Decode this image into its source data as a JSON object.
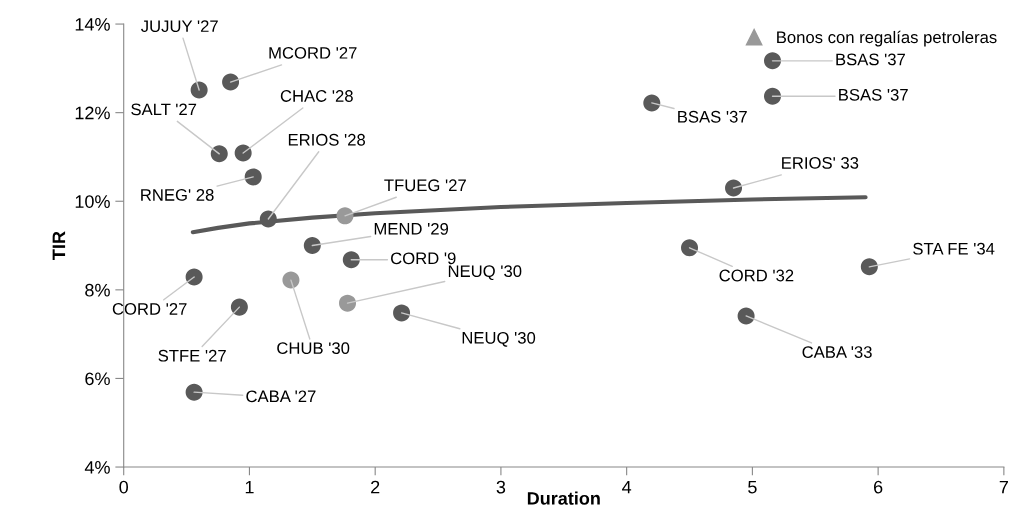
{
  "chart_data": {
    "type": "scatter",
    "xlabel": "Duration",
    "ylabel": "TIR",
    "xlim": [
      0,
      7
    ],
    "xticks": [
      0,
      1,
      2,
      3,
      4,
      5,
      6,
      7
    ],
    "ylim": [
      4,
      14
    ],
    "yticks": [
      {
        "value": 4,
        "label": "4%"
      },
      {
        "value": 6,
        "label": "6%"
      },
      {
        "value": 8,
        "label": "8%"
      },
      {
        "value": 10,
        "label": "10%"
      },
      {
        "value": 12,
        "label": "12%"
      },
      {
        "value": 14,
        "label": "14%"
      }
    ],
    "grid": false,
    "legend": "top right",
    "marker": "circle",
    "series": [
      {
        "color": "#595959",
        "x": [
          0.6,
          0.85,
          0.76,
          0.95,
          1.03,
          1.15,
          1.5,
          1.81,
          0.56,
          0.92,
          2.21,
          0.56,
          4.2,
          5.16,
          5.16,
          4.85,
          4.5,
          5.93,
          4.95
        ],
        "values": [
          12.51,
          12.69,
          11.07,
          11.09,
          10.55,
          9.6,
          9.0,
          8.68,
          8.29,
          7.61,
          7.48,
          5.69,
          12.22,
          13.17,
          12.37,
          10.3,
          8.95,
          8.52,
          7.41
        ]
      },
      {
        "name": "Bonos con regalías petroleras",
        "color": "#999999",
        "x": [
          1.76,
          1.33,
          1.78
        ],
        "values": [
          9.67,
          8.22,
          7.7
        ]
      },
      {
        "type": "line",
        "color": "#595959",
        "marker": "none",
        "x": [
          0.55,
          0.75,
          1,
          1.5,
          2,
          3,
          4,
          5,
          5.9
        ],
        "values": [
          9.3,
          9.4,
          9.5,
          9.63,
          9.73,
          9.87,
          9.96,
          10.04,
          10.09
        ]
      }
    ],
    "annotations": [
      {
        "text": "JUJUY '27",
        "x": 0.6,
        "y": 12.51
      },
      {
        "text": "MCORD '27",
        "x": 0.85,
        "y": 12.69
      },
      {
        "text": "SALT '27",
        "x": 0.76,
        "y": 11.07
      },
      {
        "text": "CHAC '28",
        "x": 0.95,
        "y": 11.09
      },
      {
        "text": "RNEG' 28",
        "x": 1.03,
        "y": 10.55
      },
      {
        "text": "ERIOS '28",
        "x": 1.15,
        "y": 9.6
      },
      {
        "text": "MEND '29",
        "x": 1.5,
        "y": 9.0
      },
      {
        "text": "CORD '9",
        "x": 1.81,
        "y": 8.68
      },
      {
        "text": "CORD '27",
        "x": 0.56,
        "y": 8.29
      },
      {
        "text": "STFE '27",
        "x": 0.92,
        "y": 7.61
      },
      {
        "text": "NEUQ '30",
        "x": 2.21,
        "y": 7.48
      },
      {
        "text": "CABA '27",
        "x": 0.56,
        "y": 5.69
      },
      {
        "text": "BSAS '37",
        "x": 4.2,
        "y": 12.22
      },
      {
        "text": "BSAS '37",
        "x": 5.16,
        "y": 13.17
      },
      {
        "text": "BSAS '37",
        "x": 5.16,
        "y": 12.37
      },
      {
        "text": "ERIOS' 33",
        "x": 4.85,
        "y": 10.3
      },
      {
        "text": "CORD '32",
        "x": 4.5,
        "y": 8.95
      },
      {
        "text": "STA FE '34",
        "x": 5.93,
        "y": 8.52
      },
      {
        "text": "CABA '33",
        "x": 4.95,
        "y": 7.41
      },
      {
        "text": "TFUEG '27",
        "x": 1.76,
        "y": 9.67
      },
      {
        "text": "CHUB '30",
        "x": 1.33,
        "y": 8.22
      },
      {
        "text": "NEUQ '30",
        "x": 1.78,
        "y": 7.7
      }
    ]
  }
}
